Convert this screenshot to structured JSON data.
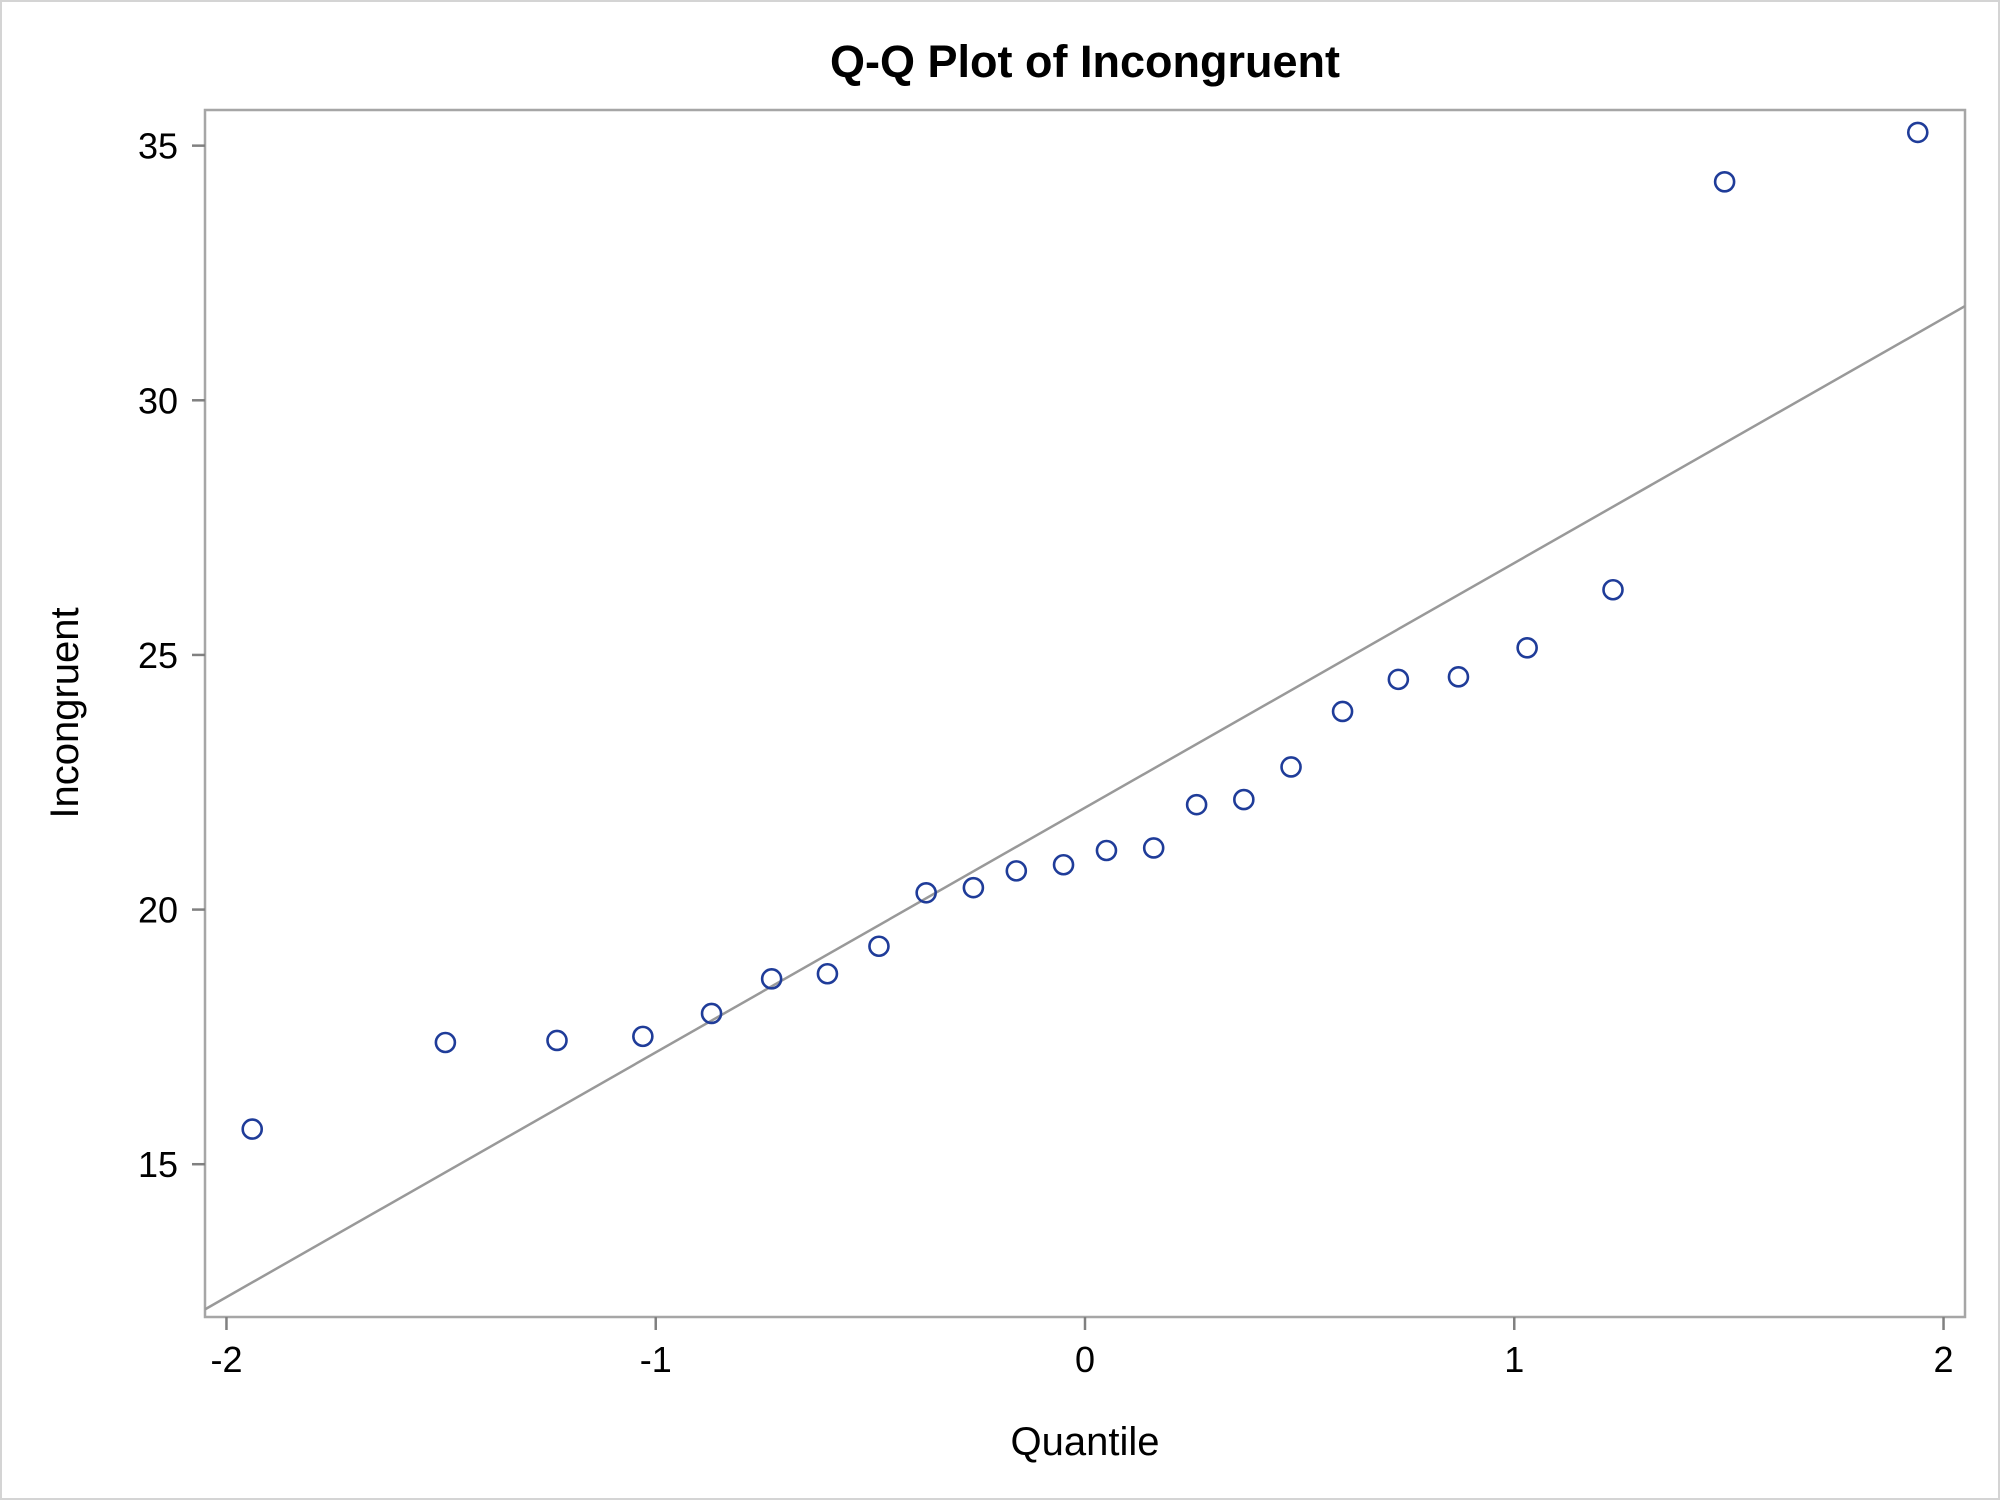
{
  "chart_data": {
    "type": "scatter",
    "title": "Q-Q Plot of Incongruent",
    "xlabel": "Quantile",
    "ylabel": "Incongruent",
    "xlim": [
      -2.05,
      2.05
    ],
    "ylim": [
      12.0,
      35.7
    ],
    "xticks": [
      -2,
      -1,
      0,
      1,
      2
    ],
    "xtick_labels": [
      "-2",
      "-1",
      "0",
      "1",
      "2"
    ],
    "yticks": [
      15,
      20,
      25,
      30,
      35
    ],
    "ytick_labels": [
      "15",
      "20",
      "25",
      "30",
      "35"
    ],
    "grid": false,
    "marker_color": "#1f3c99",
    "line_color": "#999999",
    "reference_line": {
      "x": [
        -2.05,
        2.05
      ],
      "y": [
        12.15,
        31.85
      ]
    },
    "series": [
      {
        "marker": "circle-open",
        "x": [
          -1.94,
          -1.49,
          -1.23,
          -1.03,
          -0.87,
          -0.73,
          -0.6,
          -0.48,
          -0.37,
          -0.26,
          -0.16,
          -0.05,
          0.05,
          0.16,
          0.26,
          0.37,
          0.48,
          0.6,
          0.73,
          0.87,
          1.03,
          1.23,
          1.49,
          1.94
        ],
        "y": [
          15.69,
          17.39,
          17.43,
          17.51,
          17.96,
          18.64,
          18.74,
          19.28,
          20.33,
          20.43,
          20.76,
          20.88,
          21.16,
          21.21,
          22.06,
          22.16,
          22.8,
          23.89,
          24.52,
          24.57,
          25.14,
          26.28,
          34.29,
          35.26
        ]
      }
    ]
  }
}
